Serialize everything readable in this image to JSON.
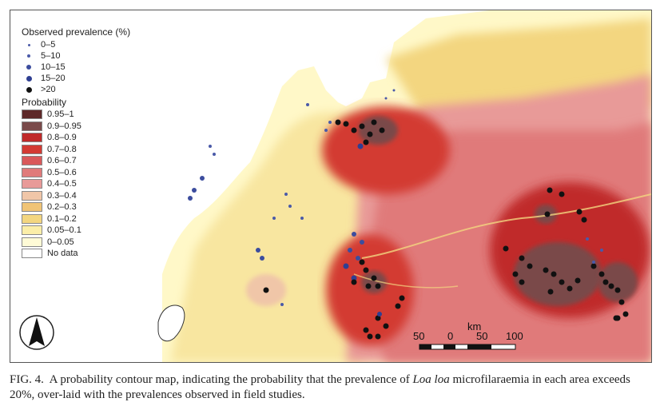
{
  "legend": {
    "observed_title": "Observed prevalence (%)",
    "observed": [
      {
        "label": "0–5",
        "color": "#4a5aa8",
        "size": 3
      },
      {
        "label": "5–10",
        "color": "#4a5aa8",
        "size": 4
      },
      {
        "label": "10–15",
        "color": "#3c4d9e",
        "size": 6
      },
      {
        "label": "15–20",
        "color": "#2f3f92",
        "size": 7
      },
      {
        "label": ">20",
        "color": "#111111",
        "size": 7
      }
    ],
    "probability_title": "Probability",
    "probability": [
      {
        "label": "0.95–1",
        "color": "#5e2828"
      },
      {
        "label": "0.9–0.95",
        "color": "#7a4a4a"
      },
      {
        "label": "0.8–0.9",
        "color": "#c02a2a"
      },
      {
        "label": "0.7–0.8",
        "color": "#d33a33"
      },
      {
        "label": "0.6–0.7",
        "color": "#d9585a"
      },
      {
        "label": "0.5–0.6",
        "color": "#e07a7a"
      },
      {
        "label": "0.4–0.5",
        "color": "#e89a98"
      },
      {
        "label": "0.3–0.4",
        "color": "#f0c6a8"
      },
      {
        "label": "0.2–0.3",
        "color": "#f0c476"
      },
      {
        "label": "0.1–0.2",
        "color": "#f3d680"
      },
      {
        "label": "0.05–0.1",
        "color": "#fbeea8"
      },
      {
        "label": "0–0.05",
        "color": "#fffbd6"
      },
      {
        "label": "No data",
        "color": "#ffffff"
      }
    ]
  },
  "scale": {
    "unit": "km",
    "ticks": [
      "50",
      "0",
      "50",
      "100"
    ]
  },
  "caption": {
    "prefix": "FIG. 4.",
    "text_before": "  A probability contour map, indicating the probability that the prevalence of ",
    "species": "Loa loa",
    "text_after": " microfilaraemia in each area exceeds 20%, over-laid with the prevalences observed in field studies."
  }
}
